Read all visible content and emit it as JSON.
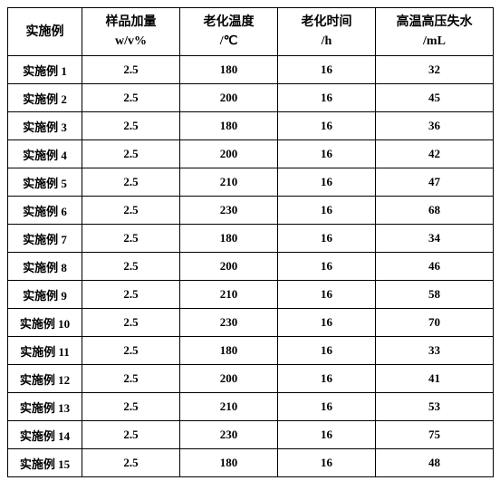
{
  "table": {
    "columns": [
      {
        "line1": "实施例",
        "line2": ""
      },
      {
        "line1": "样品加量",
        "line2": "w/v%"
      },
      {
        "line1": "老化温度",
        "line2": "/℃"
      },
      {
        "line1": "老化时间",
        "line2": "/h"
      },
      {
        "line1": "高温高压失水",
        "line2": "/mL"
      }
    ],
    "rows": [
      {
        "c0": "实施例 1",
        "c1": "2.5",
        "c2": "180",
        "c3": "16",
        "c4": "32"
      },
      {
        "c0": "实施例 2",
        "c1": "2.5",
        "c2": "200",
        "c3": "16",
        "c4": "45"
      },
      {
        "c0": "实施例 3",
        "c1": "2.5",
        "c2": "180",
        "c3": "16",
        "c4": "36"
      },
      {
        "c0": "实施例 4",
        "c1": "2.5",
        "c2": "200",
        "c3": "16",
        "c4": "42"
      },
      {
        "c0": "实施例 5",
        "c1": "2.5",
        "c2": "210",
        "c3": "16",
        "c4": "47"
      },
      {
        "c0": "实施例 6",
        "c1": "2.5",
        "c2": "230",
        "c3": "16",
        "c4": "68"
      },
      {
        "c0": "实施例 7",
        "c1": "2.5",
        "c2": "180",
        "c3": "16",
        "c4": "34"
      },
      {
        "c0": "实施例 8",
        "c1": "2.5",
        "c2": "200",
        "c3": "16",
        "c4": "46"
      },
      {
        "c0": "实施例 9",
        "c1": "2.5",
        "c2": "210",
        "c3": "16",
        "c4": "58"
      },
      {
        "c0": "实施例 10",
        "c1": "2.5",
        "c2": "230",
        "c3": "16",
        "c4": "70"
      },
      {
        "c0": "实施例 11",
        "c1": "2.5",
        "c2": "180",
        "c3": "16",
        "c4": "33"
      },
      {
        "c0": "实施例 12",
        "c1": "2.5",
        "c2": "200",
        "c3": "16",
        "c4": "41"
      },
      {
        "c0": "实施例 13",
        "c1": "2.5",
        "c2": "210",
        "c3": "16",
        "c4": "53"
      },
      {
        "c0": "实施例 14",
        "c1": "2.5",
        "c2": "230",
        "c3": "16",
        "c4": "75"
      },
      {
        "c0": "实施例 15",
        "c1": "2.5",
        "c2": "180",
        "c3": "16",
        "c4": "48"
      }
    ]
  }
}
